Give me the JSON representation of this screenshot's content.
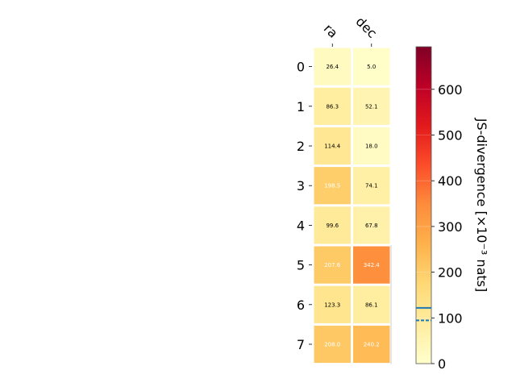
{
  "chart_data": {
    "type": "heatmap",
    "columns": [
      "ra",
      "dec"
    ],
    "rows": [
      "0",
      "1",
      "2",
      "3",
      "4",
      "5",
      "6",
      "7"
    ],
    "values": [
      [
        26.4,
        5.0
      ],
      [
        86.3,
        52.1
      ],
      [
        114.4,
        18.0
      ],
      [
        198.5,
        74.1
      ],
      [
        99.6,
        67.8
      ],
      [
        207.6,
        342.4
      ],
      [
        123.3,
        86.1
      ],
      [
        208.0,
        240.2
      ]
    ],
    "cell_labels": [
      [
        "26.4",
        "5.0"
      ],
      [
        "86.3",
        "52.1"
      ],
      [
        "114.4",
        "18.0"
      ],
      [
        "198.5",
        "74.1"
      ],
      [
        "99.6",
        "67.8"
      ],
      [
        "207.6",
        "342.4"
      ],
      [
        "123.3",
        "86.1"
      ],
      [
        "208.0",
        "240.2"
      ]
    ],
    "colorbar": {
      "label": "JS-divergence [×10⁻³ nats]",
      "range": [
        0,
        693.1
      ],
      "ticks": [
        "0",
        "100",
        "200",
        "300",
        "400",
        "500",
        "600"
      ],
      "tick_values": [
        0,
        100,
        200,
        300,
        400,
        500,
        600
      ],
      "colormap": "YlOrRd",
      "reference_lines": [
        {
          "value": 121.8,
          "style": "solid",
          "color": "#1f77b4"
        },
        {
          "value": 94.6,
          "style": "dashed",
          "color": "#1f77b4"
        }
      ]
    },
    "grid": false
  }
}
